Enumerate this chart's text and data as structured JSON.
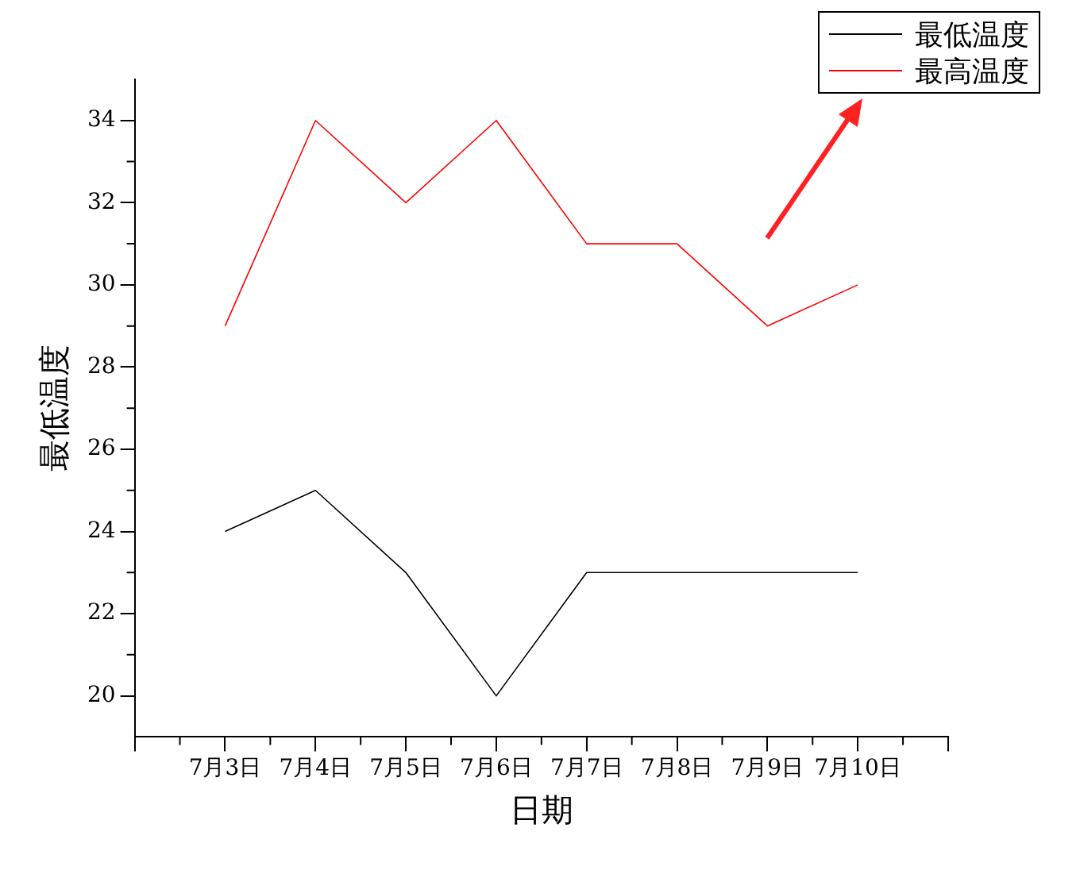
{
  "chart_data": {
    "type": "line",
    "xlabel": "日期",
    "ylabel": "最低温度",
    "categories": [
      "7月3日",
      "7月4日",
      "7月5日",
      "7月6日",
      "7月7日",
      "7月8日",
      "7月9日",
      "7月10日"
    ],
    "series": [
      {
        "name": "最低温度",
        "color": "#000000",
        "values": [
          24,
          25,
          23,
          20,
          23,
          23,
          23,
          23
        ]
      },
      {
        "name": "最高温度",
        "color": "#ff0000",
        "values": [
          29,
          34,
          32,
          34,
          31,
          31,
          29,
          30
        ]
      }
    ],
    "ylim": [
      19,
      35
    ],
    "yticks": [
      20,
      22,
      24,
      26,
      28,
      30,
      32,
      34
    ],
    "grid": false,
    "legend": "top right",
    "marker": "none",
    "line_style": "solid"
  }
}
